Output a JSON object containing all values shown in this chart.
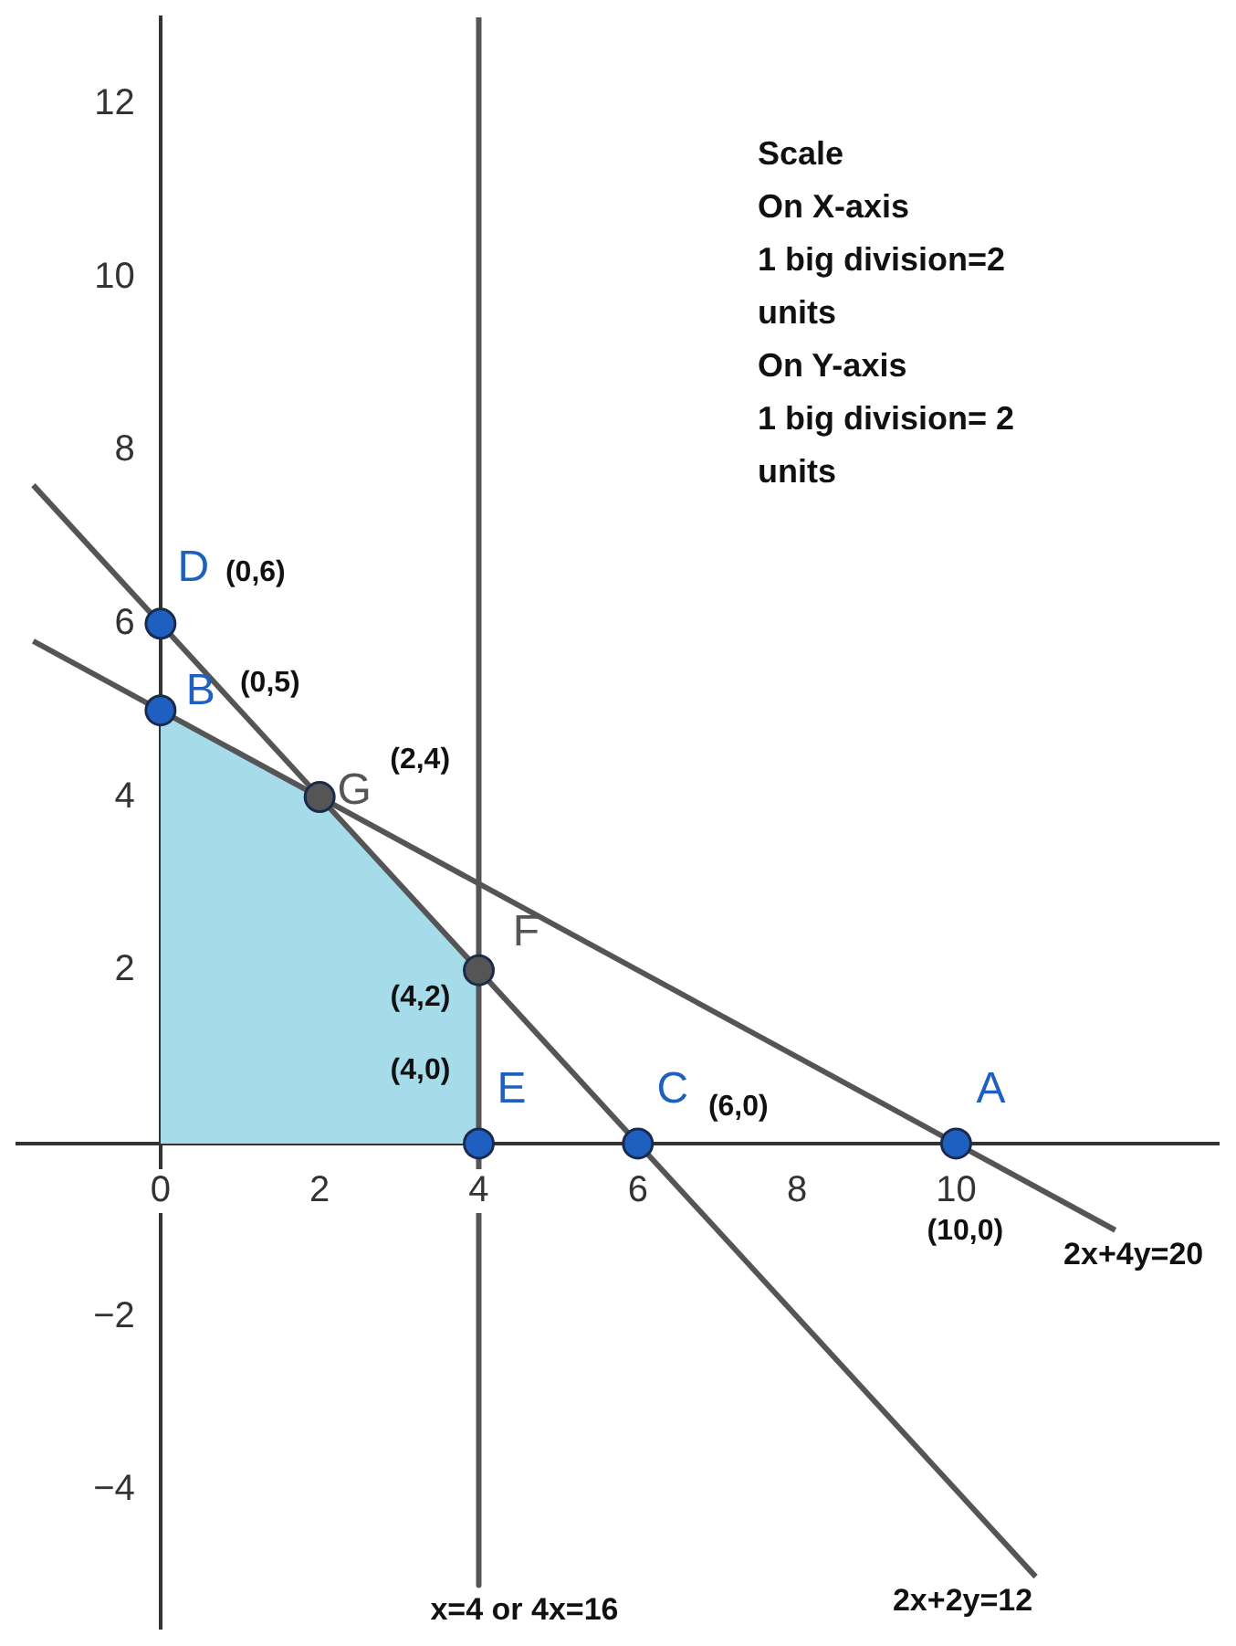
{
  "chart_data": {
    "type": "line",
    "xlim": [
      -1.8,
      13.3
    ],
    "ylim": [
      -5.6,
      13
    ],
    "xticks": [
      0,
      2,
      4,
      6,
      8,
      10
    ],
    "yticks": [
      -4,
      -2,
      2,
      4,
      6,
      8,
      10,
      12
    ],
    "grid": false,
    "legend": false,
    "series": [
      {
        "type": "area",
        "color": "#a6dbea",
        "x": [
          0,
          0,
          2,
          4,
          4
        ],
        "values": [
          0,
          5,
          4,
          2,
          0
        ]
      },
      {
        "name": "2x+4y=20",
        "color": "#555555",
        "x": [
          -1.6,
          12
        ],
        "values": [
          5.8,
          -1
        ]
      },
      {
        "name": "2x+2y=12",
        "color": "#555555",
        "x": [
          -1.6,
          11
        ],
        "values": [
          7.6,
          -5
        ]
      },
      {
        "name": "x=4 or 4x=16",
        "color": "#555555",
        "x": [
          4,
          4
        ],
        "values": [
          13,
          -5.1
        ]
      },
      {
        "type": "scatter",
        "color": "#1f5fbf",
        "marker": "circle",
        "x": [
          10,
          0,
          6,
          0,
          4
        ],
        "values": [
          0,
          5,
          0,
          6,
          0
        ]
      },
      {
        "type": "scatter",
        "color": "#555555",
        "marker": "circle",
        "x": [
          2,
          4
        ],
        "values": [
          4,
          2
        ]
      }
    ],
    "annotations": [
      {
        "text": "A",
        "x": 10,
        "y": 0
      },
      {
        "text": "(10,0)",
        "x": 10,
        "y": 0
      },
      {
        "text": "B",
        "x": 0,
        "y": 5
      },
      {
        "text": "(0,5)",
        "x": 0,
        "y": 5
      },
      {
        "text": "C",
        "x": 6,
        "y": 0
      },
      {
        "text": "(6,0)",
        "x": 6,
        "y": 0
      },
      {
        "text": "D",
        "x": 0,
        "y": 6
      },
      {
        "text": "(0,6)",
        "x": 0,
        "y": 6
      },
      {
        "text": "E",
        "x": 4,
        "y": 0
      },
      {
        "text": "(4,0)",
        "x": 4,
        "y": 0
      },
      {
        "text": "G",
        "x": 2,
        "y": 4
      },
      {
        "text": "(2,4)",
        "x": 2,
        "y": 4
      },
      {
        "text": "F",
        "x": 4,
        "y": 2
      },
      {
        "text": "(4,2)",
        "x": 4,
        "y": 2
      },
      "Scale",
      "On X-axis",
      "1 big division=2",
      "units",
      "On Y-axis",
      "1 big division= 2",
      "units"
    ]
  }
}
